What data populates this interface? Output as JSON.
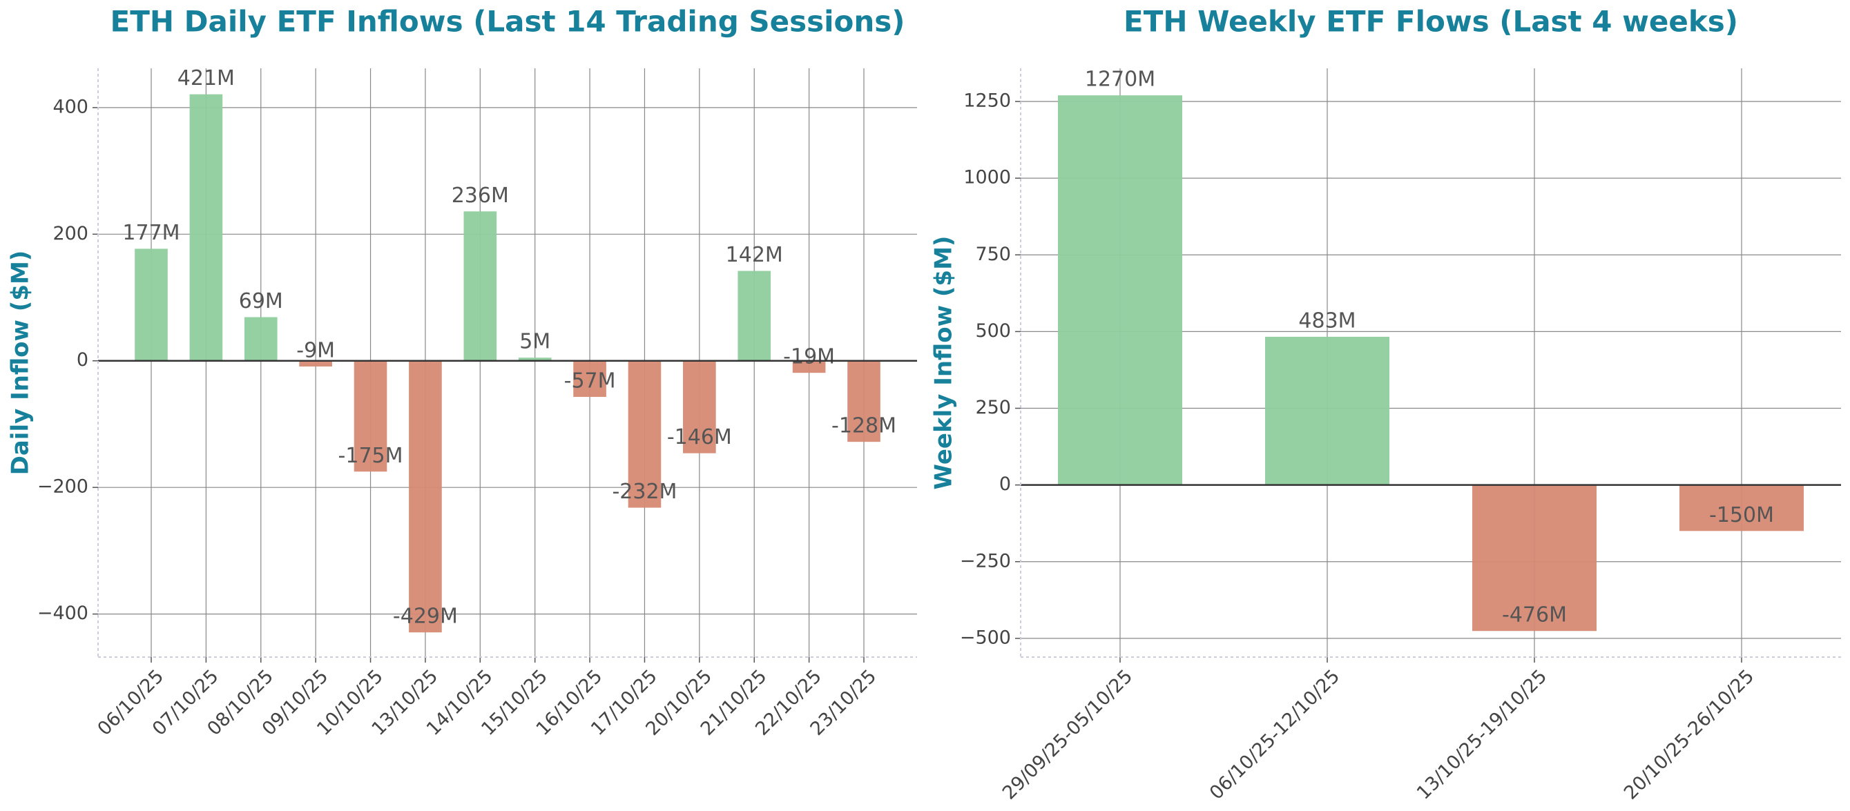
{
  "chart_data": [
    {
      "type": "bar",
      "title": "ETH Daily ETF Inflows (Last 14 Trading Sessions)",
      "y_label": "Daily Inflow ($M)",
      "categories": [
        "06/10/25",
        "07/10/25",
        "08/10/25",
        "09/10/25",
        "10/10/25",
        "13/10/25",
        "14/10/25",
        "15/10/25",
        "16/10/25",
        "17/10/25",
        "20/10/25",
        "21/10/25",
        "22/10/25",
        "23/10/25"
      ],
      "values": [
        177,
        421,
        69,
        -9,
        -175,
        -429,
        236,
        5,
        -57,
        -232,
        -146,
        142,
        -19,
        -128
      ],
      "value_labels": [
        "177M",
        "421M",
        "69M",
        "-9M",
        "-175M",
        "-429M",
        "236M",
        "5M",
        "-57M",
        "-232M",
        "-146M",
        "142M",
        "-19M",
        "-128M"
      ],
      "colors": {
        "positive": "#8fcd9e",
        "negative": "#d68a74"
      },
      "ylim": [
        -468,
        462
      ],
      "yticks": [
        {
          "value": -400,
          "label": "−400"
        },
        {
          "value": -200,
          "label": "−200"
        },
        0,
        200,
        400
      ],
      "grid": true
    },
    {
      "type": "bar",
      "title": "ETH Weekly ETF Flows (Last 4 weeks)",
      "y_label": "Weekly Inflow ($M)",
      "categories": [
        "29/09/25-05/10/25",
        "06/10/25-12/10/25",
        "13/10/25-19/10/25",
        "20/10/25-26/10/25"
      ],
      "values": [
        1270,
        483,
        -476,
        -150
      ],
      "value_labels": [
        "1270M",
        "483M",
        "-476M",
        "-150M"
      ],
      "colors": {
        "positive": "#8fcd9e",
        "negative": "#d68a74"
      },
      "ylim": [
        -561,
        1358
      ],
      "yticks": [
        {
          "value": -500,
          "label": "−500"
        },
        {
          "value": -250,
          "label": "−250"
        },
        0,
        250,
        500,
        750,
        1000,
        1250
      ],
      "grid": true
    }
  ]
}
